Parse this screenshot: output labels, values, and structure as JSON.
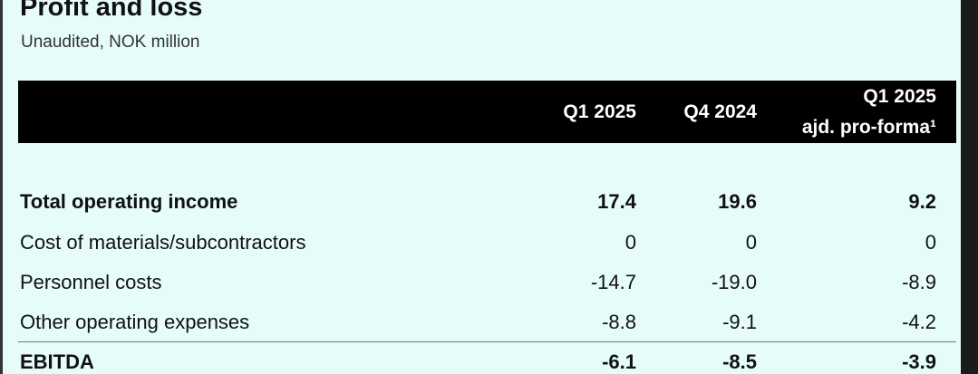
{
  "header": {
    "title": "Profit and loss",
    "subtitle": "Unaudited, NOK million"
  },
  "table": {
    "columns": [
      [
        "Q1 2025"
      ],
      [
        "Q4 2024"
      ],
      [
        "Q1 2025",
        "ajd. pro-forma¹"
      ]
    ],
    "rows": [
      {
        "label": "Total operating income",
        "bold": true,
        "values": [
          "17.4",
          "19.6",
          "9.2"
        ]
      },
      {
        "label": "Cost of materials/subcontractors",
        "bold": false,
        "values": [
          "0",
          "0",
          "0"
        ]
      },
      {
        "label": "Personnel costs",
        "bold": false,
        "values": [
          "-14.7",
          "-19.0",
          "-8.9"
        ]
      },
      {
        "label": "Other operating expenses",
        "bold": false,
        "values": [
          "-8.8",
          "-9.1",
          "-4.2"
        ]
      },
      {
        "label": "EBITDA",
        "bold": true,
        "values": [
          "-6.1",
          "-8.5",
          "-3.9"
        ]
      }
    ]
  }
}
